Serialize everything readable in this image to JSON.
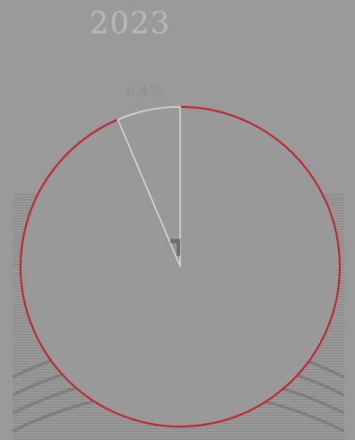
{
  "title": "2023",
  "chart_data": {
    "type": "pie",
    "title": "2023",
    "slices": [
      {
        "label": "",
        "value": 93.6,
        "color": "#c0202a"
      },
      {
        "label": "6.4%",
        "value": 6.4,
        "color": "#dcdcdc"
      }
    ],
    "start_angle_deg": 0,
    "direction": "clockwise",
    "background": "#9a9a9a",
    "slice_fill": "#999999",
    "inner_mark_color": "#6e6e6e"
  }
}
